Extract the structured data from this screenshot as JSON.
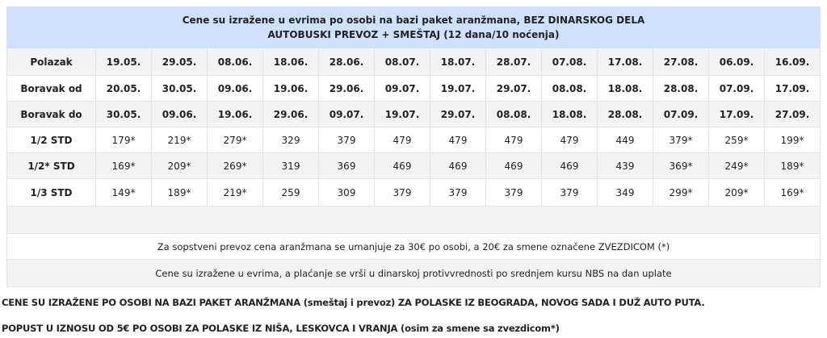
{
  "title_line1": "Cene su izražene u evrima po osobi na bazi paket aranžmana, BEZ DINARSKOG DELA",
  "title_line2": "AUTOBUSKI PREVOZ + SMEŠTAJ (12 dana/10 noćenja)",
  "rows": [
    {
      "label": "Polazak",
      "bold": true,
      "values": [
        "19.05.",
        "29.05.",
        "08.06.",
        "18.06.",
        "28.06.",
        "08.07.",
        "18.07.",
        "28.07.",
        "07.08.",
        "17.08.",
        "27.08.",
        "06.09.",
        "16.09."
      ]
    },
    {
      "label": "Boravak od",
      "bold": true,
      "values": [
        "20.05.",
        "30.05.",
        "09.06.",
        "19.06.",
        "29.06.",
        "09.07.",
        "19.07.",
        "29.07.",
        "08.08.",
        "18.08.",
        "28.08.",
        "07.09.",
        "17.09."
      ]
    },
    {
      "label": "Boravak do",
      "bold": true,
      "values": [
        "30.05.",
        "09.06.",
        "19.06.",
        "29.06.",
        "09.07.",
        "19.07.",
        "29.07.",
        "08.08.",
        "18.08.",
        "28.08.",
        "07.09.",
        "17.09.",
        "27.09."
      ]
    },
    {
      "label": "1/2 STD",
      "bold": false,
      "values": [
        "179*",
        "219*",
        "279*",
        "329",
        "379",
        "479",
        "479",
        "479",
        "479",
        "449",
        "379*",
        "259*",
        "199*"
      ]
    },
    {
      "label": "1/2* STD",
      "bold": false,
      "values": [
        "169*",
        "209*",
        "269*",
        "319",
        "369",
        "469",
        "469",
        "469",
        "469",
        "439",
        "369*",
        "249*",
        "189*"
      ]
    },
    {
      "label": "1/3 STD",
      "bold": false,
      "values": [
        "149*",
        "189*",
        "219*",
        "259",
        "309",
        "379",
        "379",
        "379",
        "379",
        "349",
        "299*",
        "209*",
        "169*"
      ]
    }
  ],
  "note1": "Za sopstveni prevoz cena aranžmana se umanjuje za 30€ po osobi, a 20€ za smene označene ZVEZDICOM (*)",
  "note2": "Cene su izražene u evrima, a plaćanje se vrši u dinarskoj protivvrednosti po srednjem kursu NBS na dan uplate",
  "footer1": "CENE SU IZRAŽENE PO OSOBI NA BAZI PAKET ARANŽMANA (smeštaj i prevoz) ZA POLASKE IZ BEOGRADA, NOVOG SADA I DUŽ AUTO PUTA.",
  "footer2": "POPUST U IZNOSU OD 5€ PO OSOBI ZA POLASKE IZ NIŠA, LESKOVCA I VRANJA (osim za smene sa zvezdicom*)",
  "colors": {
    "header_bg": "#cfe1fc",
    "stripe": "#f3f3f3"
  }
}
